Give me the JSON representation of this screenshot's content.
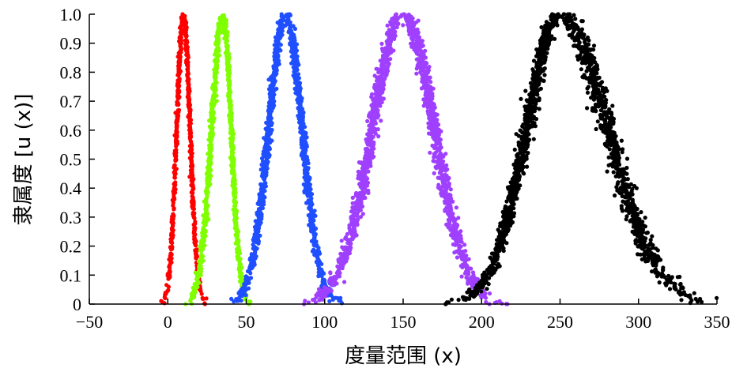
{
  "chart_data": {
    "type": "scatter",
    "title": "",
    "xlabel": "度量范围 (x)",
    "ylabel": "隶属度 [u (x)]",
    "xlim": [
      -50,
      350
    ],
    "ylim": [
      0,
      1.0
    ],
    "xticks": [
      "−50",
      "0",
      "50",
      "100",
      "150",
      "200",
      "250",
      "300",
      "350"
    ],
    "yticks": [
      "0",
      "0.1",
      "0.2",
      "0.3",
      "0.4",
      "0.5",
      "0.6",
      "0.7",
      "0.8",
      "0.9",
      "1.0"
    ],
    "grid": false,
    "legend": "none",
    "series": [
      {
        "color": "#ff0000",
        "peak_x": 10,
        "x_range": [
          -2,
          22
        ],
        "y_range": [
          0,
          1.0
        ]
      },
      {
        "color": "#7fff00",
        "peak_x": 35,
        "x_range": [
          15,
          50
        ],
        "y_range": [
          0,
          1.0
        ]
      },
      {
        "color": "#1f4fff",
        "peak_x": 75,
        "x_range": [
          45,
          105
        ],
        "y_range": [
          0,
          1.0
        ]
      },
      {
        "color": "#a040ff",
        "peak_x": 150,
        "x_range": [
          95,
          205
        ],
        "y_range": [
          0,
          1.0
        ]
      },
      {
        "color": "#000000",
        "peak_x": 250,
        "x_range": [
          190,
          335
        ],
        "y_range": [
          0,
          1.0
        ]
      }
    ]
  }
}
